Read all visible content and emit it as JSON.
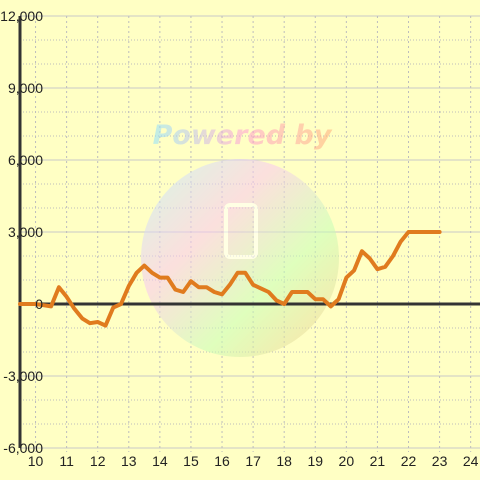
{
  "watermark": {
    "text": "Powered by"
  },
  "colors": {
    "background": "#ffffc4",
    "grid_major": "#c8c8c8",
    "grid_minor": "#bdbdbd",
    "axis": "#333333",
    "series": "#e07b1e"
  },
  "chart_data": {
    "type": "line",
    "title": "",
    "xlabel": "",
    "ylabel": "",
    "grid": true,
    "xlim": [
      9.5,
      24.3
    ],
    "ylim": [
      -6000,
      12000
    ],
    "x_ticks": [
      10,
      11,
      12,
      13,
      14,
      15,
      16,
      17,
      18,
      19,
      20,
      21,
      22,
      23,
      24
    ],
    "x_tick_labels": [
      "10",
      "11",
      "12",
      "13",
      "14",
      "15",
      "16",
      "17",
      "18",
      "19",
      "20",
      "21",
      "22",
      "23",
      "24"
    ],
    "y_ticks": [
      -6000,
      -3000,
      0,
      3000,
      6000,
      9000,
      12000
    ],
    "y_tick_labels": [
      "-6,000",
      "-3,000",
      "0",
      "3,000",
      "6,000",
      "9,000",
      "12,000"
    ],
    "series": [
      {
        "x": [
          9.5,
          9.75,
          10.0,
          10.25,
          10.5,
          10.75,
          11.0,
          11.25,
          11.5,
          11.75,
          12.0,
          12.25,
          12.5,
          12.75,
          13.0,
          13.25,
          13.5,
          13.75,
          14.0,
          14.25,
          14.5,
          14.75,
          15.0,
          15.25,
          15.5,
          15.75,
          16.0,
          16.25,
          16.5,
          16.75,
          17.0,
          17.25,
          17.5,
          17.75,
          18.0,
          18.25,
          18.5,
          18.75,
          19.0,
          19.25,
          19.5,
          19.75,
          20.0,
          20.25,
          20.5,
          20.75,
          21.0,
          21.25,
          21.5,
          21.75,
          22.0,
          22.25,
          22.5,
          22.75,
          23.0
        ],
        "values": [
          0,
          0,
          0,
          -50,
          -100,
          700,
          300,
          -200,
          -600,
          -800,
          -750,
          -900,
          -150,
          0,
          750,
          1300,
          1600,
          1300,
          1100,
          1100,
          600,
          500,
          950,
          700,
          700,
          500,
          400,
          800,
          1300,
          1300,
          800,
          650,
          500,
          150,
          0,
          500,
          500,
          500,
          200,
          200,
          -100,
          200,
          1100,
          1400,
          2200,
          1900,
          1450,
          1550,
          2000,
          2600,
          3000,
          3000,
          3000,
          3000,
          3000
        ]
      }
    ]
  }
}
